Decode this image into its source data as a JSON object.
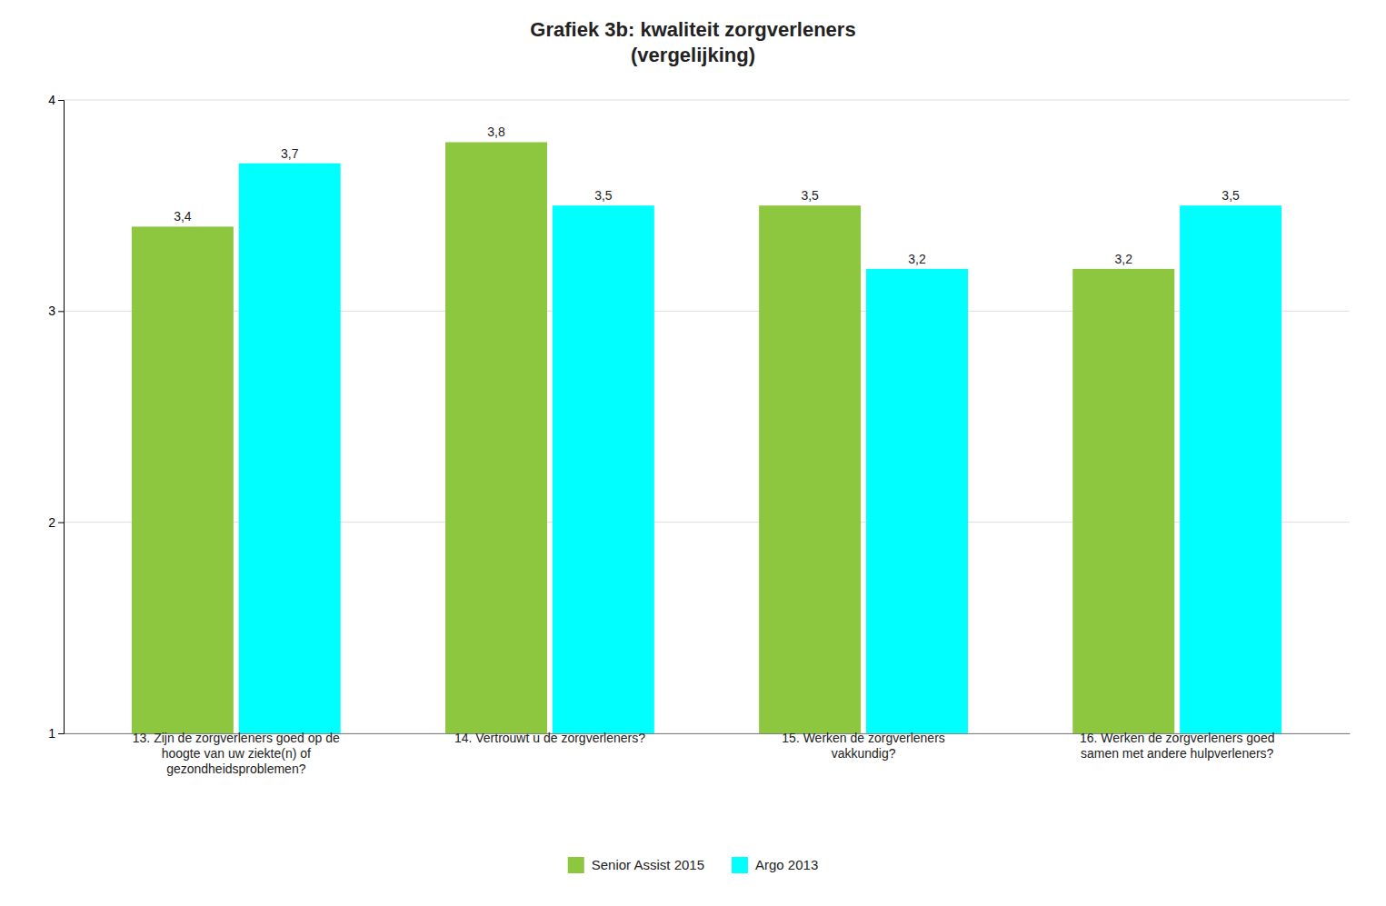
{
  "chart_data": {
    "type": "bar",
    "title": "Grafiek 3b: kwaliteit zorgverleners\n(vergelijking)",
    "categories": [
      "13. Zijn de zorgverleners goed op de\nhoogte van uw ziekte(n) of\ngezondheidsproblemen?",
      "14. Vertrouwt u de zorgverleners?",
      "15. Werken de zorgverleners\nvakkundig?",
      "16. Werken de zorgverleners goed\nsamen met andere hulpverleners?"
    ],
    "series": [
      {
        "name": "Senior Assist 2015",
        "color": "#8DC63F",
        "values": [
          3.4,
          3.8,
          3.5,
          3.2
        ],
        "value_labels": [
          "3,4",
          "3,8",
          "3,5",
          "3,2"
        ]
      },
      {
        "name": "Argo 2013",
        "color": "#00FFFF",
        "values": [
          3.7,
          3.5,
          3.2,
          3.5
        ],
        "value_labels": [
          "3,7",
          "3,5",
          "3,2",
          "3,5"
        ]
      }
    ],
    "ylim": [
      1,
      4
    ],
    "yticks": [
      1,
      2,
      3,
      4
    ],
    "grid": true,
    "data_labels": true,
    "legend": "bottom"
  }
}
